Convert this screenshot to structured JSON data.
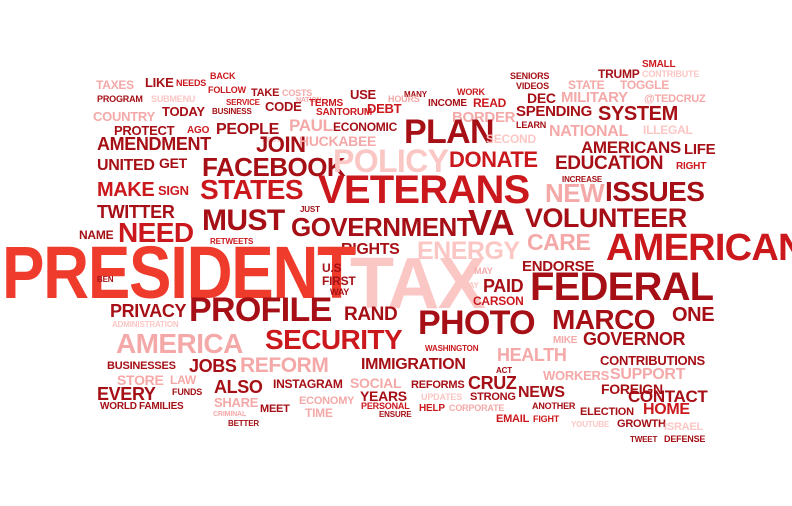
{
  "palette": {
    "dark": "#a50f15",
    "red": "#cb181d",
    "bright": "#ef3b2c",
    "pink": "#f4a9a8",
    "light": "#fbc7c5"
  },
  "words": [
    {
      "text": "SMALL",
      "tone": "red",
      "weight": 1
    },
    {
      "text": "CONTRIBUTE",
      "tone": "light",
      "weight": 1
    },
    {
      "text": "BACK",
      "tone": "red",
      "weight": 1
    },
    {
      "text": "TRUMP",
      "tone": "dark",
      "weight": 2
    },
    {
      "text": "SENIORS",
      "tone": "dark",
      "weight": 1
    },
    {
      "text": "STATE",
      "tone": "pink",
      "weight": 2
    },
    {
      "text": "TOGGLE",
      "tone": "pink",
      "weight": 2
    },
    {
      "text": "TAXES",
      "tone": "pink",
      "weight": 2
    },
    {
      "text": "LIKE",
      "tone": "dark",
      "weight": 2
    },
    {
      "text": "NEEDS",
      "tone": "red",
      "weight": 1
    },
    {
      "text": "FOLLOW",
      "tone": "red",
      "weight": 1
    },
    {
      "text": "TAKE",
      "tone": "dark",
      "weight": 2
    },
    {
      "text": "COSTS",
      "tone": "pink",
      "weight": 1
    },
    {
      "text": "WORK",
      "tone": "red",
      "weight": 1
    },
    {
      "text": "VIDEOS",
      "tone": "dark",
      "weight": 1
    },
    {
      "text": "MANY",
      "tone": "dark",
      "weight": 1
    },
    {
      "text": "NATION",
      "tone": "pink",
      "weight": 1
    },
    {
      "text": "USE",
      "tone": "dark",
      "weight": 3
    },
    {
      "text": "DEC",
      "tone": "dark",
      "weight": 3
    },
    {
      "text": "MILITARY",
      "tone": "pink",
      "weight": 3
    },
    {
      "text": "@TEDCRUZ",
      "tone": "pink",
      "weight": 1
    },
    {
      "text": "PROGRAM",
      "tone": "dark",
      "weight": 1
    },
    {
      "text": "SUBMENU",
      "tone": "light",
      "weight": 1
    },
    {
      "text": "BUSINESS",
      "tone": "dark",
      "weight": 1
    },
    {
      "text": "SERVICE",
      "tone": "red",
      "weight": 1
    },
    {
      "text": "CODE",
      "tone": "dark",
      "weight": 3
    },
    {
      "text": "TERMS",
      "tone": "red",
      "weight": 1
    },
    {
      "text": "HOURS",
      "tone": "pink",
      "weight": 1
    },
    {
      "text": "INCOME",
      "tone": "dark",
      "weight": 1
    },
    {
      "text": "READ",
      "tone": "red",
      "weight": 2
    },
    {
      "text": "SPENDING",
      "tone": "dark",
      "weight": 3
    },
    {
      "text": "SYSTEM",
      "tone": "dark",
      "weight": 4
    },
    {
      "text": "COUNTRY",
      "tone": "pink",
      "weight": 2
    },
    {
      "text": "TODAY",
      "tone": "dark",
      "weight": 2
    },
    {
      "text": "SANTORUM",
      "tone": "red",
      "weight": 1
    },
    {
      "text": "DEBT",
      "tone": "red",
      "weight": 2
    },
    {
      "text": "BORDER",
      "tone": "pink",
      "weight": 3
    },
    {
      "text": "LEARN",
      "tone": "dark",
      "weight": 1
    },
    {
      "text": "ILLEGAL",
      "tone": "light",
      "weight": 2
    },
    {
      "text": "PROTECT",
      "tone": "dark",
      "weight": 2
    },
    {
      "text": "AGO",
      "tone": "red",
      "weight": 1
    },
    {
      "text": "PEOPLE",
      "tone": "dark",
      "weight": 3
    },
    {
      "text": "BEST",
      "tone": "light",
      "weight": 1
    },
    {
      "text": "PAUL",
      "tone": "pink",
      "weight": 3
    },
    {
      "text": "ECONOMIC",
      "tone": "dark",
      "weight": 2
    },
    {
      "text": "PLAN",
      "tone": "dark",
      "weight": 6
    },
    {
      "text": "SECOND",
      "tone": "light",
      "weight": 2
    },
    {
      "text": "NATIONAL",
      "tone": "pink",
      "weight": 3
    },
    {
      "text": "AMENDMENT",
      "tone": "dark",
      "weight": 4
    },
    {
      "text": "JOIN",
      "tone": "dark",
      "weight": 4
    },
    {
      "text": "HUCKABEE",
      "tone": "pink",
      "weight": 3
    },
    {
      "text": "AMERICANS",
      "tone": "dark",
      "weight": 4
    },
    {
      "text": "LIFE",
      "tone": "dark",
      "weight": 3
    },
    {
      "text": "UNITED",
      "tone": "dark",
      "weight": 3
    },
    {
      "text": "GET",
      "tone": "dark",
      "weight": 2
    },
    {
      "text": "FACEBOOK",
      "tone": "dark",
      "weight": 5
    },
    {
      "text": "POLICY",
      "tone": "light",
      "weight": 6
    },
    {
      "text": "DONATE",
      "tone": "red",
      "weight": 5
    },
    {
      "text": "EDUCATION",
      "tone": "dark",
      "weight": 4
    },
    {
      "text": "RIGHT",
      "tone": "red",
      "weight": 1
    },
    {
      "text": "INCREASE",
      "tone": "dark",
      "weight": 1
    },
    {
      "text": "MAKE",
      "tone": "red",
      "weight": 4
    },
    {
      "text": "SIGN",
      "tone": "red",
      "weight": 2
    },
    {
      "text": "STATES",
      "tone": "red",
      "weight": 6
    },
    {
      "text": "VETERANS",
      "tone": "red",
      "weight": 8
    },
    {
      "text": "NEW",
      "tone": "pink",
      "weight": 5
    },
    {
      "text": "ISSUES",
      "tone": "dark",
      "weight": 6
    },
    {
      "text": "TWITTER",
      "tone": "dark",
      "weight": 4
    },
    {
      "text": "JUST",
      "tone": "dark",
      "weight": 1
    },
    {
      "text": "MUST",
      "tone": "dark",
      "weight": 6
    },
    {
      "text": "GOVERNMENT",
      "tone": "dark",
      "weight": 5
    },
    {
      "text": "VA",
      "tone": "dark",
      "weight": 7
    },
    {
      "text": "VOLUNTEER",
      "tone": "dark",
      "weight": 6
    },
    {
      "text": "NAME",
      "tone": "dark",
      "weight": 2
    },
    {
      "text": "NEED",
      "tone": "red",
      "weight": 5
    },
    {
      "text": "RETWEETS",
      "tone": "red",
      "weight": 1
    },
    {
      "text": "CARE",
      "tone": "pink",
      "weight": 5
    },
    {
      "text": "RIGHTS",
      "tone": "dark",
      "weight": 3
    },
    {
      "text": "ENERGY",
      "tone": "light",
      "weight": 5
    },
    {
      "text": "AMERICAN",
      "tone": "red",
      "weight": 7
    },
    {
      "text": "PRESIDENT",
      "tone": "bright",
      "weight": 10
    },
    {
      "text": "BEN",
      "tone": "dark",
      "weight": 1
    },
    {
      "text": "U.S",
      "tone": "dark",
      "weight": 2
    },
    {
      "text": "TAX",
      "tone": "light",
      "weight": 10
    },
    {
      "text": "MAY",
      "tone": "pink",
      "weight": 1
    },
    {
      "text": "ENDORSE",
      "tone": "dark",
      "weight": 3
    },
    {
      "text": "FIRST",
      "tone": "dark",
      "weight": 2
    },
    {
      "text": "PAY",
      "tone": "light",
      "weight": 1
    },
    {
      "text": "FEDERAL",
      "tone": "dark",
      "weight": 8
    },
    {
      "text": "WAY",
      "tone": "dark",
      "weight": 1
    },
    {
      "text": "PAID",
      "tone": "dark",
      "weight": 4
    },
    {
      "text": "CARSON",
      "tone": "red",
      "weight": 2
    },
    {
      "text": "PRIVACY",
      "tone": "dark",
      "weight": 4
    },
    {
      "text": "PROFILE",
      "tone": "dark",
      "weight": 7
    },
    {
      "text": "RAND",
      "tone": "dark",
      "weight": 4
    },
    {
      "text": "PHOTO",
      "tone": "dark",
      "weight": 7
    },
    {
      "text": "MARCO",
      "tone": "dark",
      "weight": 6
    },
    {
      "text": "ONE",
      "tone": "dark",
      "weight": 4
    },
    {
      "text": "ADMINISTRATION",
      "tone": "light",
      "weight": 1
    },
    {
      "text": "AMERICA",
      "tone": "pink",
      "weight": 6
    },
    {
      "text": "SECURITY",
      "tone": "red",
      "weight": 6
    },
    {
      "text": "WASHINGTON",
      "tone": "red",
      "weight": 1
    },
    {
      "text": "MIKE",
      "tone": "pink",
      "weight": 1
    },
    {
      "text": "GOVERNOR",
      "tone": "dark",
      "weight": 4
    },
    {
      "text": "HEALTH",
      "tone": "pink",
      "weight": 4
    },
    {
      "text": "JOBS",
      "tone": "dark",
      "weight": 4
    },
    {
      "text": "REFORM",
      "tone": "pink",
      "weight": 5
    },
    {
      "text": "IMMIGRATION",
      "tone": "dark",
      "weight": 4
    },
    {
      "text": "BUSINESSES",
      "tone": "dark",
      "weight": 2
    },
    {
      "text": "CONTRIBUTIONS",
      "tone": "dark",
      "weight": 3
    },
    {
      "text": "STORE",
      "tone": "pink",
      "weight": 3
    },
    {
      "text": "LAW",
      "tone": "pink",
      "weight": 2
    },
    {
      "text": "SOCIAL",
      "tone": "pink",
      "weight": 3
    },
    {
      "text": "ACT",
      "tone": "dark",
      "weight": 1
    },
    {
      "text": "WORKERS",
      "tone": "pink",
      "weight": 3
    },
    {
      "text": "SUPPORT",
      "tone": "pink",
      "weight": 4
    },
    {
      "text": "EVERY",
      "tone": "dark",
      "weight": 4
    },
    {
      "text": "ALSO",
      "tone": "dark",
      "weight": 4
    },
    {
      "text": "INSTAGRAM",
      "tone": "dark",
      "weight": 3
    },
    {
      "text": "YEARS",
      "tone": "dark",
      "weight": 3
    },
    {
      "text": "REFORMS",
      "tone": "dark",
      "weight": 2
    },
    {
      "text": "CRUZ",
      "tone": "dark",
      "weight": 4
    },
    {
      "text": "NEWS",
      "tone": "dark",
      "weight": 4
    },
    {
      "text": "FOREIGN",
      "tone": "dark",
      "weight": 3
    },
    {
      "text": "SHARE",
      "tone": "pink",
      "weight": 3
    },
    {
      "text": "FUNDS",
      "tone": "dark",
      "weight": 1
    },
    {
      "text": "PERSONAL",
      "tone": "red",
      "weight": 1
    },
    {
      "text": "UPDATES",
      "tone": "light",
      "weight": 1
    },
    {
      "text": "STRONG",
      "tone": "dark",
      "weight": 2
    },
    {
      "text": "CONTACT",
      "tone": "dark",
      "weight": 4
    },
    {
      "text": "WORLD",
      "tone": "dark",
      "weight": 1
    },
    {
      "text": "FAMILIES",
      "tone": "dark",
      "weight": 1
    },
    {
      "text": "MEET",
      "tone": "dark",
      "weight": 2
    },
    {
      "text": "ECONOMY",
      "tone": "pink",
      "weight": 2
    },
    {
      "text": "TIME",
      "tone": "pink",
      "weight": 2
    },
    {
      "text": "ENSURE",
      "tone": "dark",
      "weight": 1
    },
    {
      "text": "HELP",
      "tone": "red",
      "weight": 2
    },
    {
      "text": "CORPORATE",
      "tone": "pink",
      "weight": 1
    },
    {
      "text": "ANOTHER",
      "tone": "dark",
      "weight": 1
    },
    {
      "text": "ELECTION",
      "tone": "dark",
      "weight": 2
    },
    {
      "text": "HOME",
      "tone": "red",
      "weight": 4
    },
    {
      "text": "CRIMINAL",
      "tone": "pink",
      "weight": 1
    },
    {
      "text": "BETTER",
      "tone": "dark",
      "weight": 1
    },
    {
      "text": "EMAIL",
      "tone": "red",
      "weight": 2
    },
    {
      "text": "FIGHT",
      "tone": "red",
      "weight": 1
    },
    {
      "text": "YOUTUBE",
      "tone": "light",
      "weight": 1
    },
    {
      "text": "GROWTH",
      "tone": "dark",
      "weight": 2
    },
    {
      "text": "ISRAEL",
      "tone": "light",
      "weight": 2
    },
    {
      "text": "TWEET",
      "tone": "dark",
      "weight": 1
    },
    {
      "text": "DEFENSE",
      "tone": "dark",
      "weight": 1
    }
  ]
}
